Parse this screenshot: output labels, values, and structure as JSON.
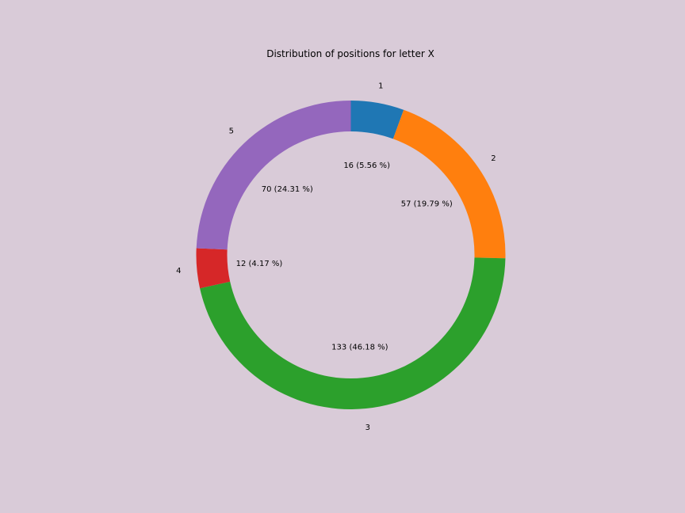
{
  "chart_data": {
    "type": "pie",
    "title": "Distribution of positions for letter X",
    "categories": [
      "1",
      "2",
      "3",
      "4",
      "5"
    ],
    "values": [
      16,
      57,
      133,
      12,
      70
    ],
    "data_labels": [
      "16 (5.56 %)",
      "57 (19.79 %)",
      "133 (46.18 %)",
      "12 (4.17 %)",
      "70 (24.31 %)"
    ],
    "colors": [
      "#1f77b4",
      "#ff7f0e",
      "#2ca02c",
      "#d62728",
      "#9467bd"
    ],
    "legend": "none",
    "donut": true
  }
}
